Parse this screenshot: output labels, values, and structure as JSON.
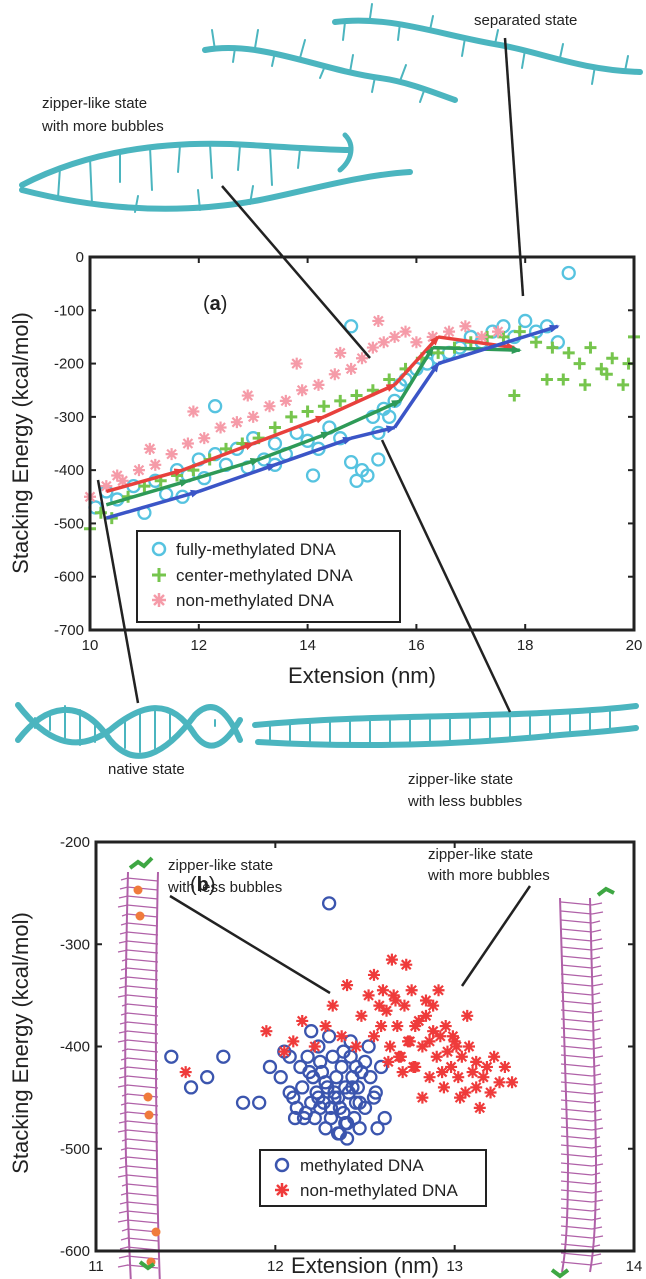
{
  "colors": {
    "fully": "#56c3e0",
    "center": "#76c54d",
    "non": "#f59ba8",
    "methylated_b": "#3b55ae",
    "nonmeth_b": "#ef3b3b",
    "arrow_red": "#e8403c",
    "arrow_green": "#2e9a57",
    "arrow_blue": "#3b55c7",
    "dna_a": "#4bb5bf",
    "dna_b": "#b061a8",
    "methyl_dot": "#f07b3c",
    "end_cap": "#3ea743"
  },
  "panel_a": {
    "label": "a",
    "ylabel": "Stacking Energy (kcal/mol)",
    "xlabel": "Extension (nm)",
    "xticks": [
      "10",
      "12",
      "14",
      "16",
      "18",
      "20"
    ],
    "yticks": [
      "0",
      "-100",
      "-200",
      "-300",
      "-400",
      "-500",
      "-600",
      "-700"
    ],
    "legend": [
      "fully-methylated DNA",
      "center-methylated DNA",
      "non-methylated DNA"
    ]
  },
  "panel_b": {
    "label": "b",
    "ylabel": "Stacking Energy (kcal/mol)",
    "xlabel": "Extension (nm)",
    "xticks": [
      "11",
      "12",
      "13",
      "14"
    ],
    "yticks": [
      "-200",
      "-300",
      "-400",
      "-500",
      "-600"
    ],
    "legend": [
      "methylated DNA",
      "non-methylated DNA"
    ]
  },
  "annotations": {
    "separated": "separated state",
    "zip_more_1": "zipper-like state",
    "zip_more_2": "with more bubbles",
    "native": "native state",
    "zip_less_1": "zipper-like state",
    "zip_less_2": "with less bubbles",
    "b_less_1": "zipper-like state",
    "b_less_2": "with less bubbles",
    "b_more_1": "zipper-like state",
    "b_more_2": "with more bubbles"
  },
  "chart_data": [
    {
      "type": "scatter",
      "panel": "a",
      "xlabel": "Extension (nm)",
      "ylabel": "Stacking Energy (kcal/mol)",
      "xlim": [
        10,
        20
      ],
      "ylim": [
        -700,
        0
      ],
      "legend_position": "bottom-left",
      "series": [
        {
          "name": "fully-methylated DNA",
          "marker": "circle",
          "x": [
            10.1,
            10.3,
            10.5,
            10.8,
            11.0,
            11.2,
            11.4,
            11.6,
            11.8,
            12.0,
            12.1,
            12.3,
            12.5,
            12.7,
            12.9,
            13.0,
            13.2,
            13.4,
            13.6,
            13.8,
            14.0,
            14.2,
            14.4,
            14.6,
            14.8,
            15.0,
            15.1,
            15.2,
            15.3,
            15.4,
            15.5,
            15.6,
            15.7,
            15.8,
            16.0,
            16.2,
            16.4,
            16.6,
            16.8,
            17.0,
            17.2,
            17.4,
            17.6,
            17.8,
            18.0,
            18.2,
            18.4,
            18.6,
            18.8,
            14.8,
            12.3,
            11.7,
            13.4,
            14.1,
            14.9,
            15.3
          ],
          "y": [
            -470,
            -440,
            -455,
            -430,
            -480,
            -420,
            -445,
            -400,
            -410,
            -380,
            -415,
            -370,
            -390,
            -360,
            -395,
            -340,
            -380,
            -350,
            -370,
            -330,
            -345,
            -360,
            -320,
            -340,
            -385,
            -400,
            -410,
            -300,
            -330,
            -285,
            -300,
            -270,
            -240,
            -230,
            -210,
            -200,
            -190,
            -180,
            -170,
            -150,
            -160,
            -140,
            -130,
            -150,
            -120,
            -140,
            -130,
            -160,
            -30,
            -130,
            -280,
            -450,
            -390,
            -410,
            -420,
            -380
          ]
        },
        {
          "name": "center-methylated DNA",
          "marker": "plus",
          "x": [
            10.0,
            10.2,
            10.4,
            10.7,
            11.0,
            11.3,
            11.6,
            11.9,
            12.2,
            12.5,
            12.8,
            13.1,
            13.4,
            13.7,
            14.0,
            14.3,
            14.6,
            14.9,
            15.2,
            15.5,
            15.8,
            16.1,
            16.4,
            16.7,
            17.0,
            17.3,
            17.6,
            17.9,
            18.2,
            18.5,
            18.8,
            19.0,
            19.2,
            19.4,
            19.6,
            19.8,
            20.0,
            18.7,
            19.1,
            19.5,
            19.9,
            17.8,
            18.4
          ],
          "y": [
            -510,
            -480,
            -490,
            -450,
            -430,
            -420,
            -410,
            -400,
            -380,
            -360,
            -350,
            -340,
            -320,
            -300,
            -290,
            -280,
            -270,
            -260,
            -250,
            -230,
            -210,
            -190,
            -180,
            -170,
            -160,
            -150,
            -150,
            -140,
            -160,
            -170,
            -180,
            -200,
            -170,
            -210,
            -190,
            -240,
            -150,
            -230,
            -240,
            -220,
            -200,
            -260,
            -230
          ]
        },
        {
          "name": "non-methylated DNA",
          "marker": "asterisk",
          "x": [
            10.0,
            10.3,
            10.6,
            10.9,
            11.2,
            11.5,
            11.8,
            12.1,
            12.4,
            12.7,
            13.0,
            13.3,
            13.6,
            13.9,
            14.2,
            14.5,
            14.8,
            15.0,
            15.2,
            15.4,
            15.6,
            15.8,
            16.0,
            16.3,
            16.6,
            16.9,
            17.2,
            17.5,
            15.3,
            14.6,
            13.8,
            12.9,
            11.9,
            11.1,
            10.5
          ],
          "y": [
            -450,
            -430,
            -420,
            -400,
            -390,
            -370,
            -350,
            -340,
            -320,
            -310,
            -300,
            -280,
            -270,
            -250,
            -240,
            -220,
            -210,
            -190,
            -170,
            -160,
            -150,
            -140,
            -160,
            -150,
            -140,
            -130,
            -150,
            -140,
            -120,
            -180,
            -200,
            -260,
            -290,
            -360,
            -410
          ]
        }
      ],
      "arrows": [
        {
          "color": "red",
          "x": [
            10.3,
            11.7,
            13.0,
            14.3,
            15.6,
            16.4,
            17.8
          ],
          "y": [
            -440,
            -400,
            -350,
            -300,
            -240,
            -150,
            -170
          ]
        },
        {
          "color": "green",
          "x": [
            10.3,
            11.8,
            13.1,
            14.4,
            15.7,
            16.3,
            17.9
          ],
          "y": [
            -465,
            -420,
            -380,
            -330,
            -270,
            -170,
            -175
          ]
        },
        {
          "color": "blue",
          "x": [
            10.3,
            12.0,
            13.4,
            14.8,
            15.6,
            16.4,
            18.6
          ],
          "y": [
            -490,
            -440,
            -390,
            -340,
            -320,
            -200,
            -130
          ]
        }
      ]
    },
    {
      "type": "scatter",
      "panel": "b",
      "xlabel": "Extension (nm)",
      "ylabel": "Stacking Energy (kcal/mol)",
      "xlim": [
        11,
        14
      ],
      "ylim": [
        -600,
        -200
      ],
      "legend_position": "bottom-center",
      "series": [
        {
          "name": "methylated DNA",
          "marker": "circle",
          "x": [
            11.42,
            11.53,
            11.62,
            11.71,
            11.82,
            11.91,
            11.97,
            12.03,
            12.05,
            12.08,
            12.1,
            12.12,
            12.14,
            12.15,
            12.17,
            12.18,
            12.2,
            12.21,
            12.22,
            12.23,
            12.24,
            12.25,
            12.26,
            12.27,
            12.28,
            12.29,
            12.3,
            12.31,
            12.32,
            12.33,
            12.34,
            12.35,
            12.36,
            12.37,
            12.38,
            12.39,
            12.4,
            12.41,
            12.42,
            12.43,
            12.44,
            12.45,
            12.46,
            12.47,
            12.48,
            12.5,
            12.52,
            12.53,
            12.55,
            12.57,
            12.59,
            12.61,
            12.3,
            12.33,
            12.2,
            12.25,
            12.38,
            12.42,
            12.35,
            12.28,
            12.16,
            12.47,
            12.52,
            12.45,
            12.4,
            12.31,
            12.19,
            12.11,
            12.36,
            12.43,
            12.5,
            12.24,
            12.08,
            12.56,
            12.39
          ],
          "y": [
            -410,
            -440,
            -430,
            -410,
            -455,
            -455,
            -420,
            -430,
            -405,
            -445,
            -450,
            -460,
            -420,
            -440,
            -465,
            -410,
            -455,
            -430,
            -470,
            -445,
            -400,
            -460,
            -425,
            -455,
            -480,
            -440,
            -260,
            -470,
            -410,
            -450,
            -430,
            -485,
            -460,
            -420,
            -465,
            -440,
            -475,
            -445,
            -410,
            -430,
            -470,
            -455,
            -440,
            -480,
            -425,
            -460,
            -510,
            -430,
            -450,
            -480,
            -420,
            -470,
            -390,
            -445,
            -385,
            -415,
            -405,
            -395,
            -450,
            -435,
            -470,
            -455,
            -400,
            -420,
            -490,
            -460,
            -425,
            -470,
            -485,
            -440,
            -415,
            -450,
            -410,
            -445,
            -475
          ]
        },
        {
          "name": "non-methylated DNA",
          "marker": "asterisk",
          "x": [
            11.5,
            11.95,
            12.05,
            12.1,
            12.15,
            12.22,
            12.28,
            12.32,
            12.37,
            12.4,
            12.45,
            12.48,
            12.52,
            12.55,
            12.58,
            12.6,
            12.62,
            12.64,
            12.66,
            12.68,
            12.7,
            12.72,
            12.74,
            12.76,
            12.78,
            12.8,
            12.82,
            12.84,
            12.86,
            12.88,
            12.9,
            12.92,
            12.94,
            12.96,
            12.98,
            13.0,
            13.02,
            13.04,
            13.06,
            13.08,
            13.1,
            13.12,
            13.14,
            13.16,
            13.18,
            13.2,
            13.22,
            13.25,
            13.28,
            13.32,
            12.55,
            12.67,
            12.73,
            12.84,
            12.91,
            12.99,
            13.07,
            12.63,
            12.78,
            12.88,
            13.01,
            12.71,
            12.95,
            13.12,
            12.82,
            12.59,
            12.69,
            12.77,
            12.86,
            13.03,
            12.93,
            12.75,
            12.65
          ],
          "y": [
            -425,
            -385,
            -405,
            -395,
            -375,
            -400,
            -380,
            -360,
            -390,
            -340,
            -400,
            -370,
            -350,
            -390,
            -360,
            -345,
            -365,
            -400,
            -350,
            -380,
            -410,
            -360,
            -395,
            -345,
            -420,
            -375,
            -400,
            -355,
            -430,
            -385,
            -410,
            -390,
            -440,
            -405,
            -420,
            -395,
            -430,
            -410,
            -445,
            -400,
            -425,
            -415,
            -460,
            -430,
            -420,
            -445,
            -410,
            -435,
            -420,
            -435,
            -330,
            -355,
            -320,
            -370,
            -345,
            -390,
            -370,
            -415,
            -380,
            -360,
            -400,
            -425,
            -380,
            -440,
            -450,
            -380,
            -410,
            -420,
            -395,
            -450,
            -425,
            -395,
            -315
          ]
        }
      ]
    }
  ]
}
